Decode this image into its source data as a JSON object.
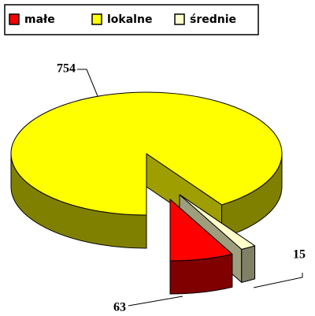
{
  "chart_data": {
    "type": "pie",
    "categories": [
      "małe",
      "lokalne",
      "średnie"
    ],
    "values": [
      63,
      754,
      15
    ],
    "colors": [
      "#ff0000",
      "#ffff00",
      "#ffffcc"
    ],
    "legend": "top"
  }
}
